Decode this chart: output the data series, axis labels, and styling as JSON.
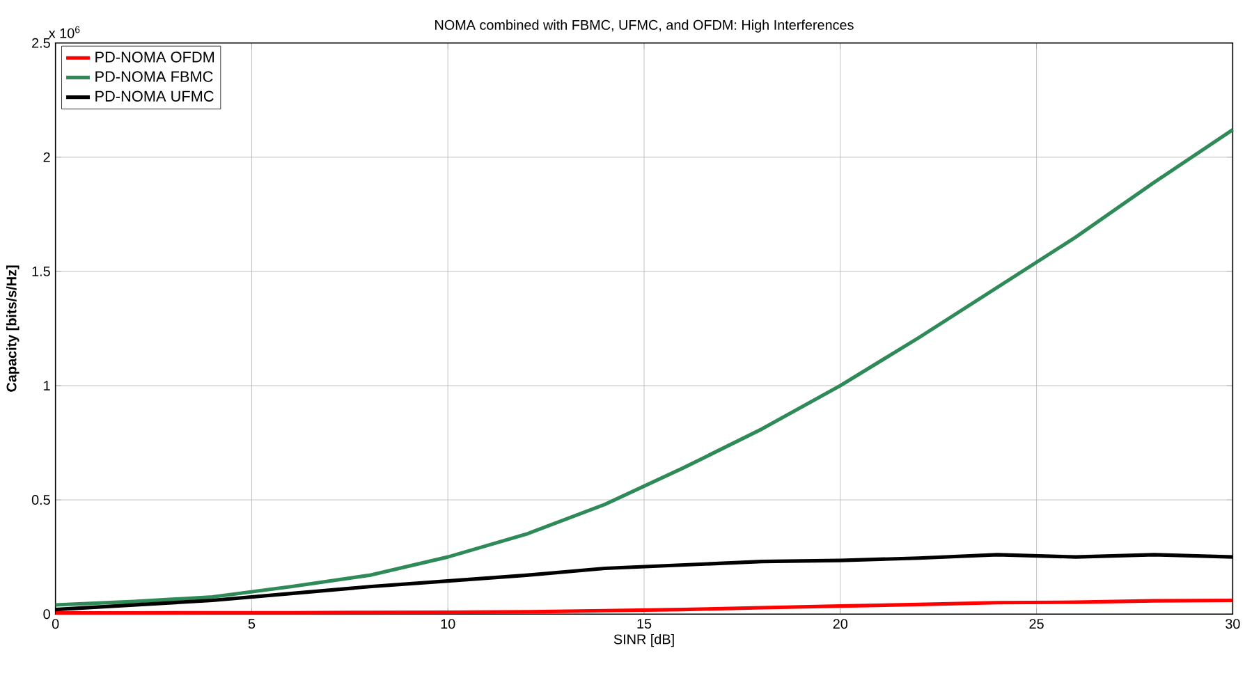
{
  "chart_data": {
    "type": "line",
    "title": "NOMA combined with FBMC, UFMC, and OFDM: High Interferences",
    "xlabel": "SINR [dB]",
    "ylabel": "Capacity [bits/s/Hz]",
    "annotations": [
      "x 10$^{6}$"
    ],
    "x": [
      0,
      2,
      4,
      6,
      8,
      10,
      12,
      14,
      16,
      18,
      20,
      22,
      24,
      26,
      28,
      30
    ],
    "series": [
      {
        "name": "PD-NOMA OFDM",
        "color": "#ff0000",
        "values": [
          0.005,
          0.005,
          0.006,
          0.006,
          0.007,
          0.008,
          0.01,
          0.015,
          0.02,
          0.028,
          0.035,
          0.042,
          0.05,
          0.052,
          0.058,
          0.06
        ]
      },
      {
        "name": "PD-NOMA FBMC",
        "color": "#2e8b57",
        "values": [
          0.04,
          0.055,
          0.075,
          0.12,
          0.17,
          0.25,
          0.35,
          0.48,
          0.64,
          0.81,
          1.0,
          1.21,
          1.43,
          1.65,
          1.89,
          2.12
        ]
      },
      {
        "name": "PD-NOMA UFMC",
        "color": "#000000",
        "values": [
          0.02,
          0.04,
          0.06,
          0.09,
          0.12,
          0.145,
          0.17,
          0.2,
          0.215,
          0.23,
          0.235,
          0.245,
          0.26,
          0.25,
          0.26,
          0.25
        ]
      }
    ],
    "xlim": [
      0,
      30
    ],
    "ylim": [
      0,
      2.5
    ],
    "xticks": [
      0,
      5,
      10,
      15,
      20,
      25,
      30
    ],
    "yticks": [
      0,
      0.5,
      1,
      1.5,
      2,
      2.5
    ],
    "grid": true,
    "legend": "top left",
    "line_style": "solid"
  }
}
